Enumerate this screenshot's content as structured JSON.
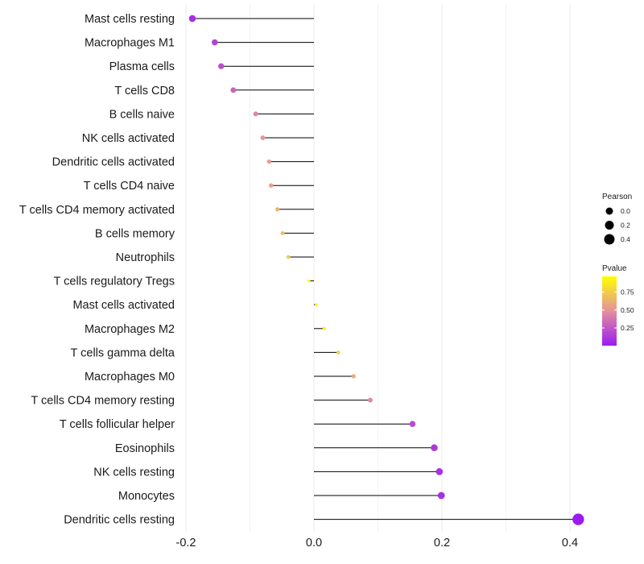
{
  "chart_data": {
    "type": "lollipop",
    "title": "",
    "xlabel": "",
    "ylabel": "",
    "xlim": [
      -0.2,
      0.4
    ],
    "x_ticks": [
      {
        "value": -0.2,
        "label": "-0.2"
      },
      {
        "value": 0.0,
        "label": "0.0"
      },
      {
        "value": 0.2,
        "label": "0.2"
      },
      {
        "value": 0.4,
        "label": "0.4"
      }
    ],
    "points": [
      {
        "category": "Mast cells resting",
        "pearson": -0.19,
        "pvalue": 0.08
      },
      {
        "category": "Macrophages M1",
        "pearson": -0.155,
        "pvalue": 0.17
      },
      {
        "category": "Plasma cells",
        "pearson": -0.145,
        "pvalue": 0.22
      },
      {
        "category": "T cells CD8",
        "pearson": -0.126,
        "pvalue": 0.31
      },
      {
        "category": "B cells naive",
        "pearson": -0.091,
        "pvalue": 0.45
      },
      {
        "category": "NK cells activated",
        "pearson": -0.08,
        "pvalue": 0.5
      },
      {
        "category": "Dendritic cells activated",
        "pearson": -0.07,
        "pvalue": 0.54
      },
      {
        "category": "T cells CD4 naive",
        "pearson": -0.067,
        "pvalue": 0.56
      },
      {
        "category": "T cells CD4 memory activated",
        "pearson": -0.057,
        "pvalue": 0.63
      },
      {
        "category": "B cells memory",
        "pearson": -0.049,
        "pvalue": 0.7
      },
      {
        "category": "Neutrophils",
        "pearson": -0.04,
        "pvalue": 0.74
      },
      {
        "category": "T cells regulatory  Tregs ",
        "pearson": -0.008,
        "pvalue": 0.95
      },
      {
        "category": "Mast cells activated",
        "pearson": 0.004,
        "pvalue": 0.97
      },
      {
        "category": "Macrophages M2",
        "pearson": 0.016,
        "pvalue": 0.9
      },
      {
        "category": "T cells gamma delta",
        "pearson": 0.038,
        "pvalue": 0.75
      },
      {
        "category": "Macrophages M0",
        "pearson": 0.062,
        "pvalue": 0.6
      },
      {
        "category": "T cells CD4 memory resting",
        "pearson": 0.088,
        "pvalue": 0.46
      },
      {
        "category": "T cells follicular helper",
        "pearson": 0.154,
        "pvalue": 0.2
      },
      {
        "category": "Eosinophils",
        "pearson": 0.188,
        "pvalue": 0.12
      },
      {
        "category": "NK cells resting",
        "pearson": 0.196,
        "pvalue": 0.1
      },
      {
        "category": "Monocytes",
        "pearson": 0.199,
        "pvalue": 0.09
      },
      {
        "category": "Dendritic cells resting",
        "pearson": 0.413,
        "pvalue": 0.003
      }
    ],
    "legend": {
      "placement": "right",
      "size": {
        "title": "Pearson",
        "entries": [
          {
            "value": 0.0,
            "label": "0.0"
          },
          {
            "value": 0.2,
            "label": "0.2"
          },
          {
            "value": 0.4,
            "label": "0.4"
          }
        ]
      },
      "color": {
        "title": "Pvalue",
        "ticks": [
          {
            "value": 0.75,
            "label": "0.75"
          },
          {
            "value": 0.5,
            "label": "0.50"
          },
          {
            "value": 0.25,
            "label": "0.25"
          }
        ],
        "range": [
          0.003,
          0.97
        ],
        "low_color": "#9b1bf2",
        "mid_color": "#e4909c",
        "high_color": "#ffff00"
      }
    },
    "colors": {
      "stem": "#000000",
      "grid": "#ebebeb",
      "text": "#1a1a1a"
    }
  }
}
